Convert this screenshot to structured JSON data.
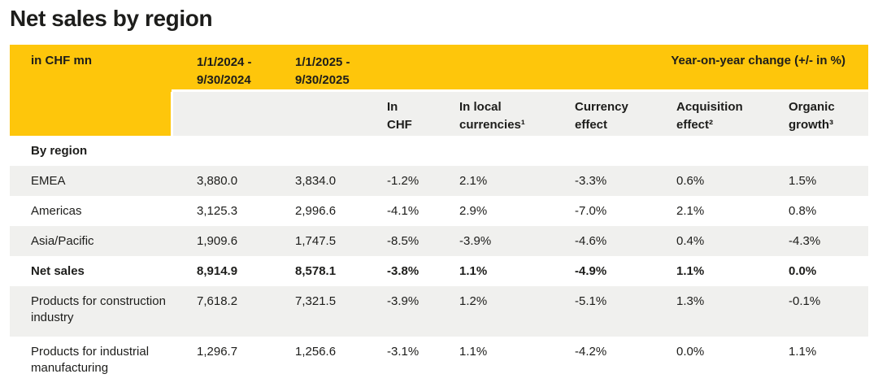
{
  "title": "Net sales by region",
  "colors": {
    "yellow": "#FEC60B",
    "shade": "#F0F0EE",
    "text": "#1D1D1B"
  },
  "table": {
    "unit_label": "in CHF mn",
    "periods": [
      "1/1/2024 -\n9/30/2024",
      "1/1/2025 -\n9/30/2025"
    ],
    "yoy_label": "Year-on-year change (+/- in %)",
    "change_columns": [
      "In\nCHF",
      "In local\ncurrencies¹",
      "Currency\neffect",
      "Acquisition\neffect²",
      "Organic\ngrowth³"
    ],
    "section_label": "By region",
    "rows": [
      {
        "label": "EMEA",
        "values": [
          "3,880.0",
          "3,834.0",
          "-1.2%",
          "2.1%",
          "-3.3%",
          "0.6%",
          "1.5%"
        ]
      },
      {
        "label": "Americas",
        "values": [
          "3,125.3",
          "2,996.6",
          "-4.1%",
          "2.9%",
          "-7.0%",
          "2.1%",
          "0.8%"
        ]
      },
      {
        "label": "Asia/Pacific",
        "values": [
          "1,909.6",
          "1,747.5",
          "-8.5%",
          "-3.9%",
          "-4.6%",
          "0.4%",
          "-4.3%"
        ]
      },
      {
        "label": "Net sales",
        "values": [
          "8,914.9",
          "8,578.1",
          "-3.8%",
          "1.1%",
          "-4.9%",
          "1.1%",
          "0.0%"
        ]
      },
      {
        "label": "Products for construction industry",
        "values": [
          "7,618.2",
          "7,321.5",
          "-3.9%",
          "1.2%",
          "-5.1%",
          "1.3%",
          "-0.1%"
        ]
      },
      {
        "label": "Products for industrial manufacturing",
        "values": [
          "1,296.7",
          "1,256.6",
          "-3.1%",
          "1.1%",
          "-4.2%",
          "0.0%",
          "1.1%"
        ]
      }
    ]
  }
}
